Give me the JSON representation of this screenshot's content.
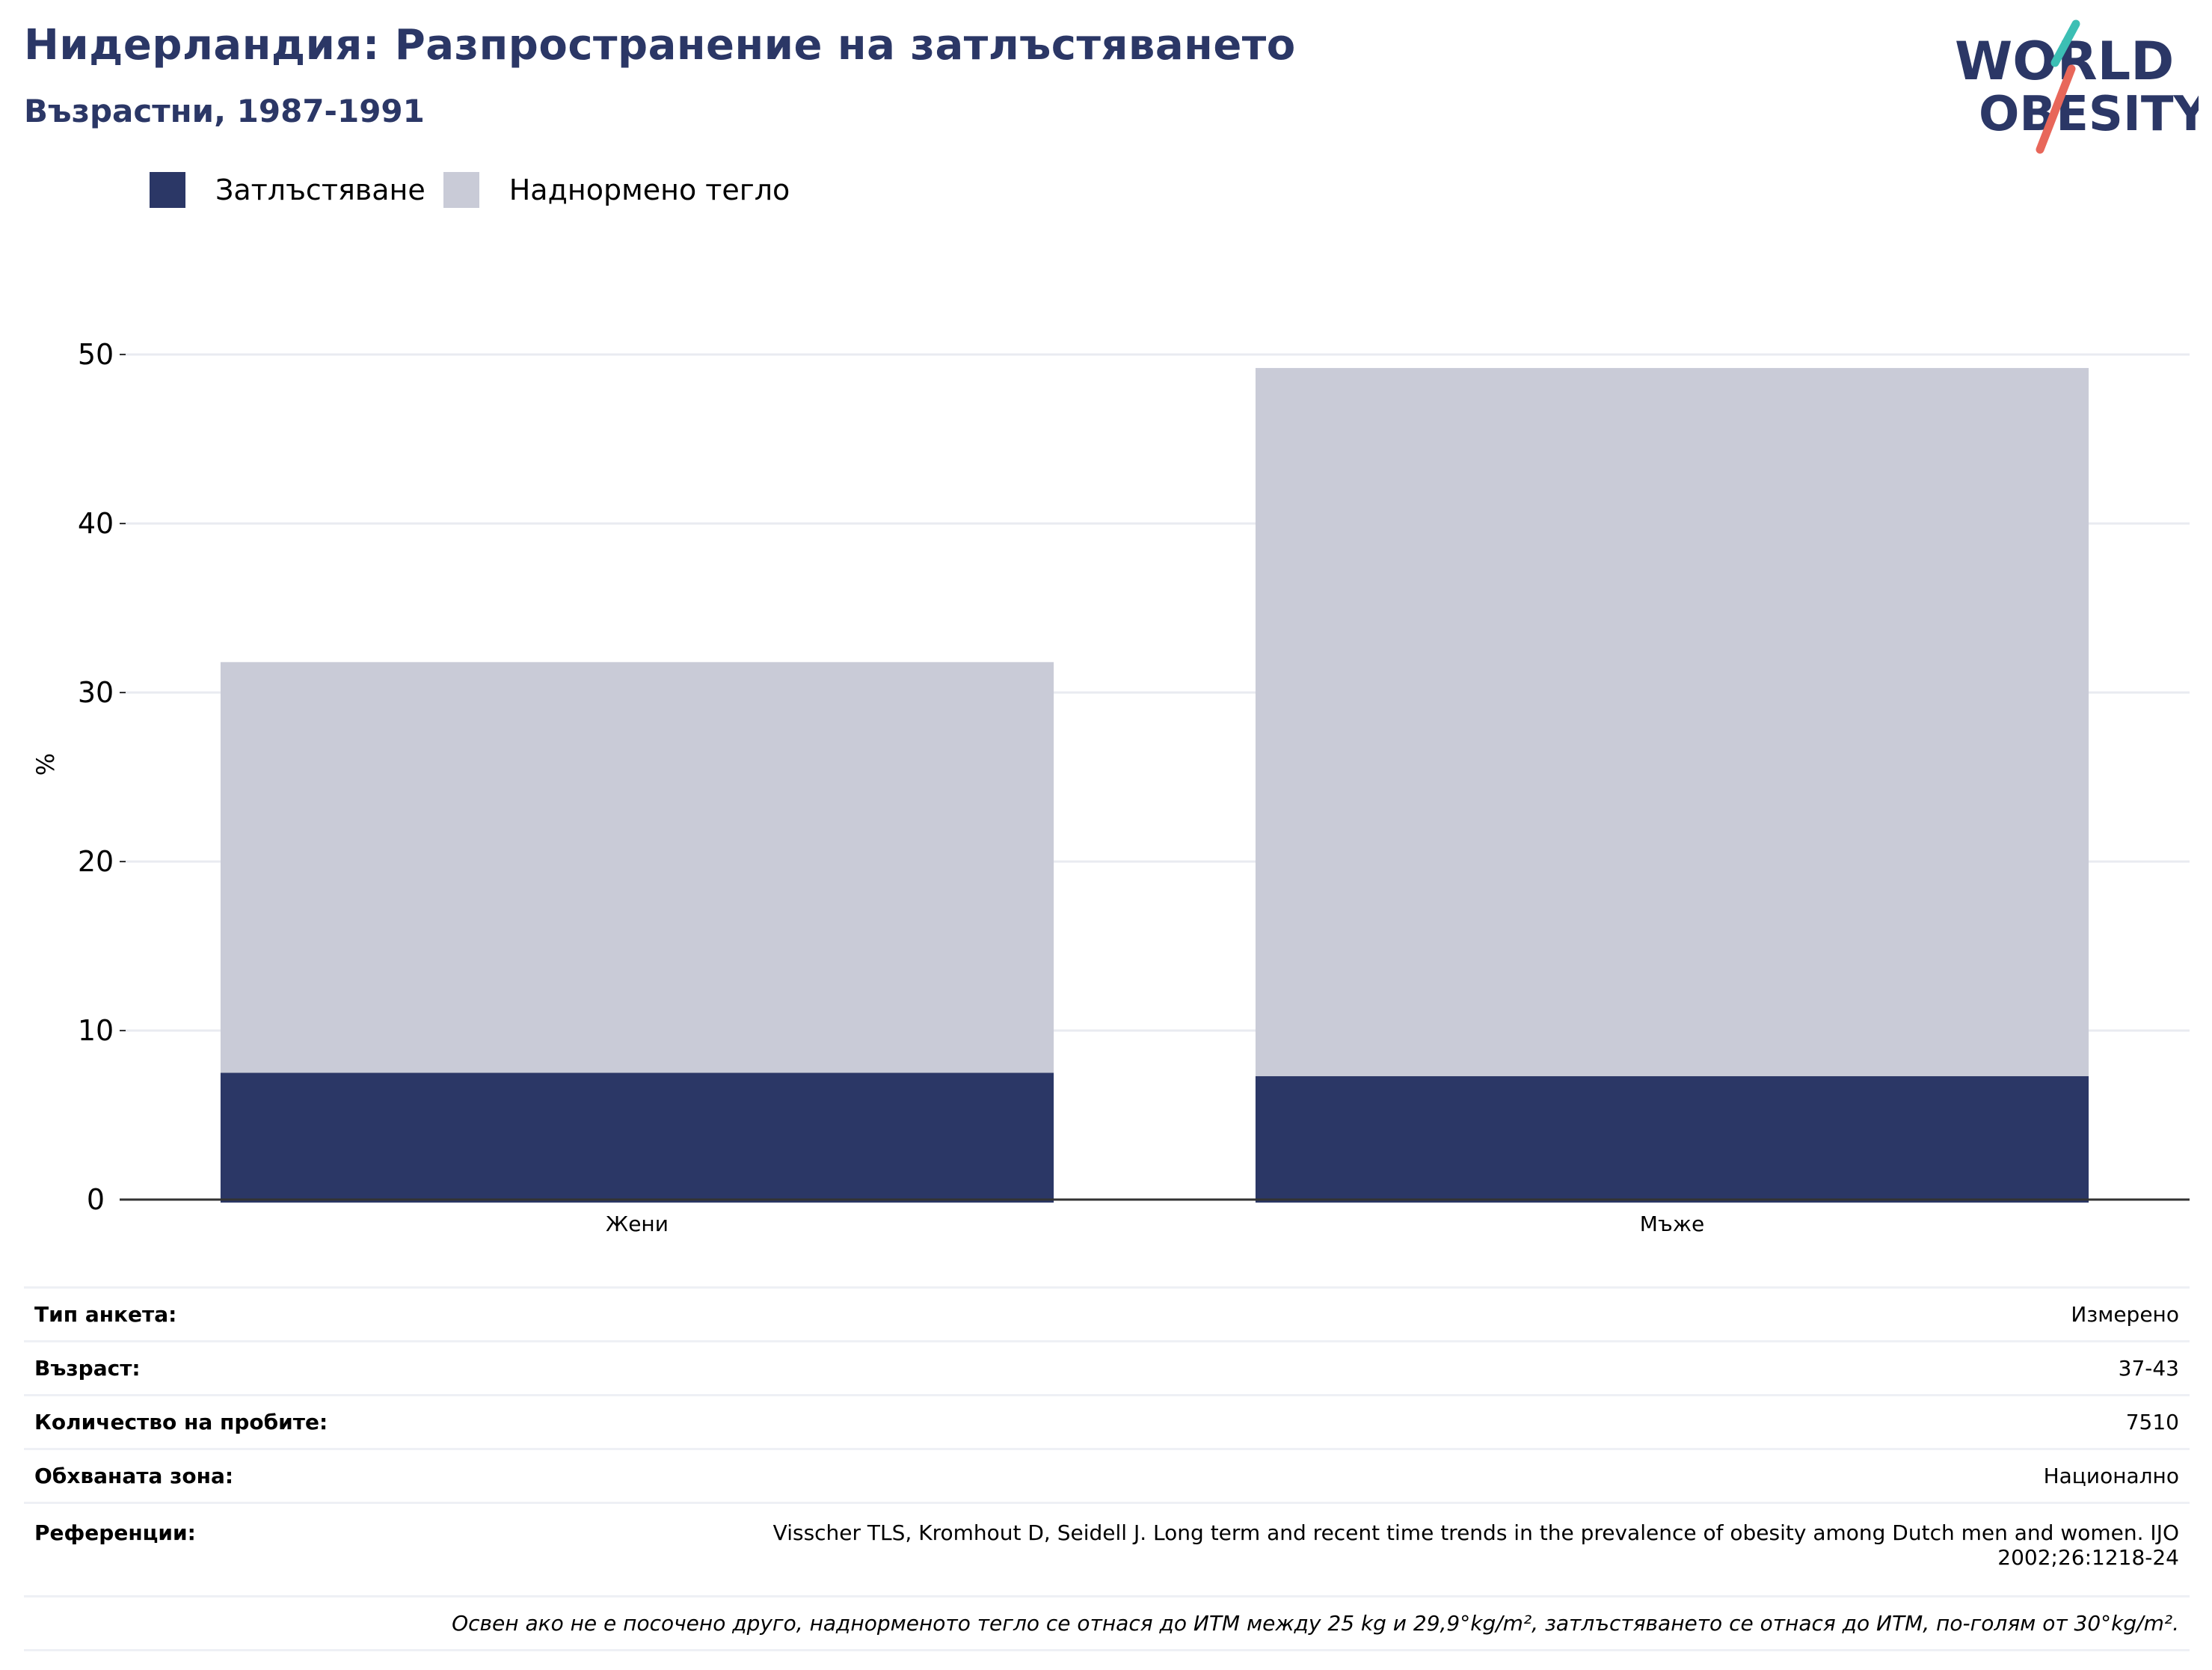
{
  "header": {
    "title": "Нидерландия: Разпространение на затлъстяването",
    "subtitle": "Възрастни, 1987-1991"
  },
  "logo": {
    "line1": "WORLD",
    "line2": "OBESITY",
    "colors": {
      "text": "#2b3766",
      "slash_top": "#3cbfb4",
      "slash_bottom": "#e8675a"
    }
  },
  "legend": {
    "items": [
      {
        "label": "Затлъстяване",
        "color": "#2b3766"
      },
      {
        "label": "Наднормено тегло",
        "color": "#c9cbd7"
      }
    ]
  },
  "chart_data": {
    "type": "bar",
    "stacked": true,
    "categories": [
      "Жени",
      "Мъже"
    ],
    "series": [
      {
        "name": "Затлъстяване",
        "color": "#2b3766",
        "values": [
          7.5,
          7.3
        ]
      },
      {
        "name": "Наднормено тегло",
        "color": "#c9cbd7",
        "values": [
          24.3,
          41.9
        ]
      }
    ],
    "totals": [
      31.8,
      49.2
    ],
    "title": "Нидерландия: Разпространение на затлъстяването",
    "subtitle": "Възрастни, 1987-1991",
    "xlabel": "",
    "ylabel": "%",
    "ylim": [
      0,
      52
    ],
    "yticks": [
      0,
      10,
      20,
      30,
      40,
      50
    ],
    "grid": true,
    "legend_position": "top-left"
  },
  "info": {
    "rows": [
      {
        "label": "Тип анкета:",
        "value": "Измерено"
      },
      {
        "label": "Възраст:",
        "value": "37-43"
      },
      {
        "label": "Количество на пробите:",
        "value": "7510"
      },
      {
        "label": "Обхваната зона:",
        "value": "Национално"
      }
    ],
    "references": {
      "label": "Референции:",
      "line1": "Visscher TLS, Kromhout D, Seidell J. Long term and recent time trends in the prevalence of obesity among Dutch men and women. IJO",
      "line2": "2002;26:1218-24"
    },
    "note": "Освен ако не е посочено друго, наднорменото тегло се отнася до ИТМ между 25 kg и 29,9°kg/m², затлъстяването се отнася до ИТМ, по-голям от 30°kg/m²."
  }
}
